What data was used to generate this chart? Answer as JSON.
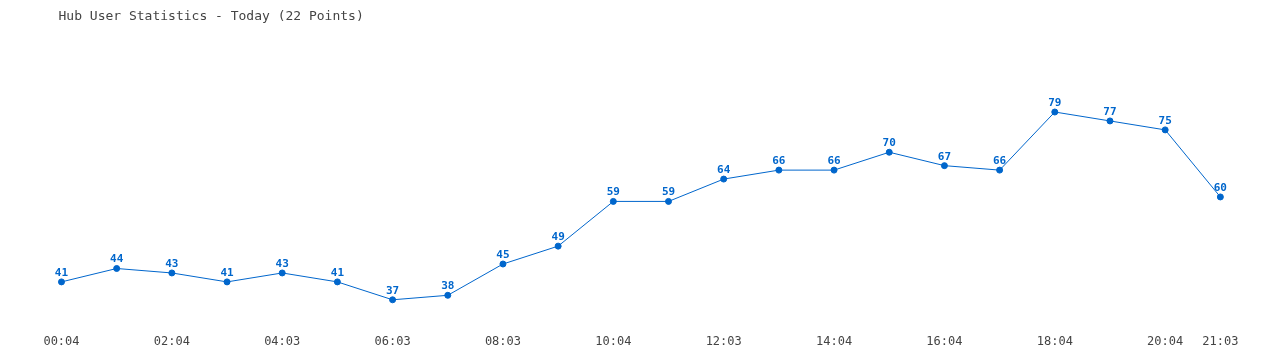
{
  "chart_data": {
    "type": "line",
    "title": "Hub User Statistics - Today (22 Points)",
    "categories": [
      "00:04",
      null,
      "02:04",
      null,
      "04:03",
      null,
      "06:03",
      null,
      "08:03",
      null,
      "10:04",
      null,
      "12:03",
      null,
      "14:04",
      null,
      "16:04",
      null,
      "18:04",
      null,
      "20:04",
      "21:03"
    ],
    "series": [
      {
        "color": "#0066cc",
        "values": [
          41,
          44,
          43,
          41,
          43,
          41,
          37,
          38,
          45,
          49,
          59,
          59,
          64,
          66,
          66,
          70,
          67,
          66,
          79,
          77,
          75,
          60
        ]
      }
    ],
    "data_labels": true,
    "marker": "circle",
    "grid": false,
    "tick_labels": "x"
  }
}
